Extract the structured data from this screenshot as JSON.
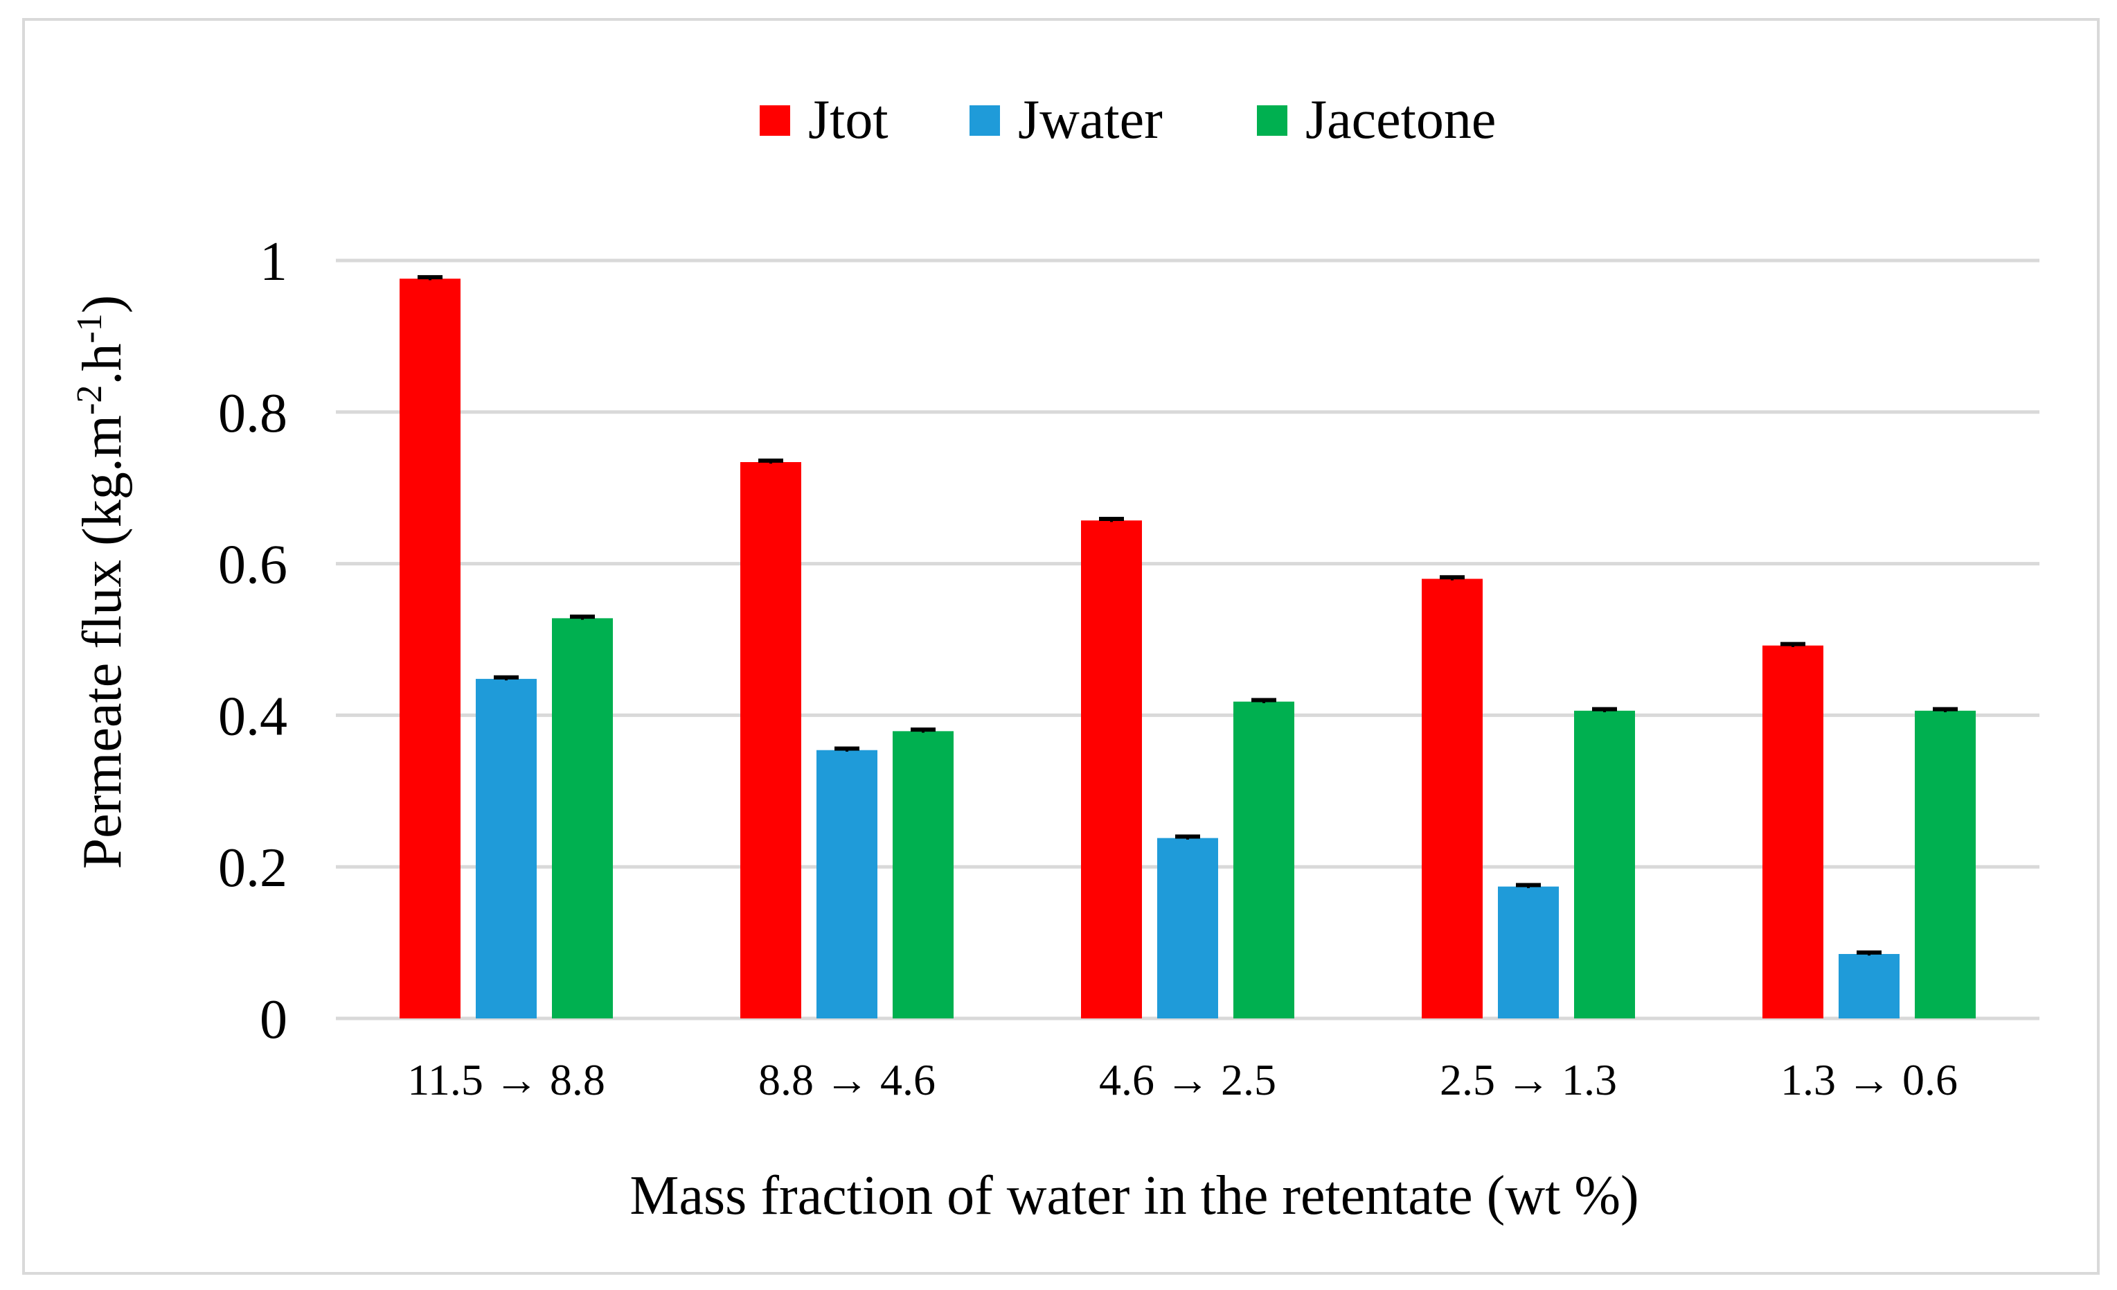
{
  "chart_data": {
    "type": "bar",
    "title": "",
    "xlabel": "Mass fraction of water in the retentate (wt %)",
    "ylabel": {
      "base": "Permeate flux (kg.m",
      "sup1": "-2",
      "mid": ".h",
      "sup2": "-1",
      "end": ")"
    },
    "categories": [
      "11.5 → 8.8",
      "8.8 → 4.6",
      "4.6 → 2.5",
      "2.5 → 1.3",
      "1.3 → 0.6"
    ],
    "series": [
      {
        "name": "Jtot",
        "color": "#ff0000",
        "values": [
          0.976,
          0.734,
          0.657,
          0.58,
          0.492
        ],
        "errors": [
          0.002,
          0.002,
          0.002,
          0.002,
          0.002
        ]
      },
      {
        "name": "Jwater",
        "color": "#1f9bd9",
        "values": [
          0.448,
          0.354,
          0.238,
          0.174,
          0.085
        ],
        "errors": [
          0.002,
          0.002,
          0.002,
          0.002,
          0.002
        ]
      },
      {
        "name": "Jacetone",
        "color": "#00b050",
        "values": [
          0.528,
          0.379,
          0.418,
          0.406,
          0.406
        ],
        "errors": [
          0.002,
          0.002,
          0.002,
          0.002,
          0.002
        ]
      }
    ],
    "ylim": [
      0,
      1
    ],
    "yticks": [
      0,
      0.2,
      0.4,
      0.6,
      0.8,
      1
    ],
    "ytick_labels": [
      "0",
      "0.2",
      "0.4",
      "0.6",
      "0.8",
      "1"
    ],
    "grid": true,
    "legend_position": "top-center",
    "colors": {
      "grid": "#d9d9d9",
      "border": "#d9d9d9",
      "error_bar": "#000000"
    }
  }
}
